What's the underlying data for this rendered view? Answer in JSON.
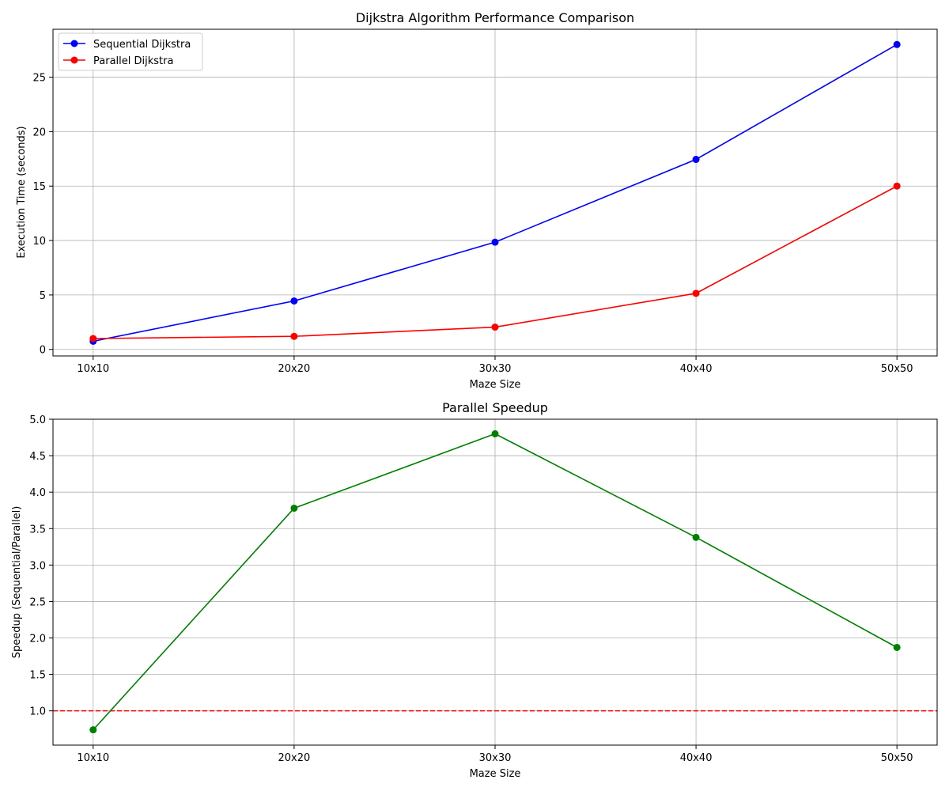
{
  "chart_data": [
    {
      "type": "line",
      "title": "Dijkstra Algorithm Performance Comparison",
      "xlabel": "Maze Size",
      "ylabel": "Execution Time (seconds)",
      "categories": [
        "10x10",
        "20x20",
        "30x30",
        "40x40",
        "50x50"
      ],
      "ylim": [
        -0.6,
        29.4
      ],
      "yticks": [
        0,
        5,
        10,
        15,
        20,
        25
      ],
      "ytick_labels": [
        "0",
        "5",
        "10",
        "15",
        "20",
        "25"
      ],
      "grid": true,
      "legend": "top-left",
      "series": [
        {
          "name": "Sequential Dijkstra",
          "color": "#0000ff",
          "marker": "circle",
          "values": [
            0.75,
            4.45,
            9.85,
            17.45,
            28.0
          ]
        },
        {
          "name": "Parallel Dijkstra",
          "color": "#ff0000",
          "marker": "circle",
          "values": [
            1.0,
            1.2,
            2.05,
            5.15,
            15.0
          ]
        }
      ]
    },
    {
      "type": "line",
      "title": "Parallel Speedup",
      "xlabel": "Maze Size",
      "ylabel": "Speedup (Sequential/Parallel)",
      "categories": [
        "10x10",
        "20x20",
        "30x30",
        "40x40",
        "50x50"
      ],
      "ylim": [
        0.53,
        5.0
      ],
      "yticks": [
        1.0,
        1.5,
        2.0,
        2.5,
        3.0,
        3.5,
        4.0,
        4.5,
        5.0
      ],
      "ytick_labels": [
        "1.0",
        "1.5",
        "2.0",
        "2.5",
        "3.0",
        "3.5",
        "4.0",
        "4.5",
        "5.0"
      ],
      "grid": true,
      "series": [
        {
          "color": "#008000",
          "marker": "circle",
          "values": [
            0.74,
            3.78,
            4.8,
            3.38,
            1.87
          ]
        }
      ],
      "reference_line": {
        "y": 1.0,
        "color": "#ff0000",
        "style": "dashed"
      }
    }
  ]
}
